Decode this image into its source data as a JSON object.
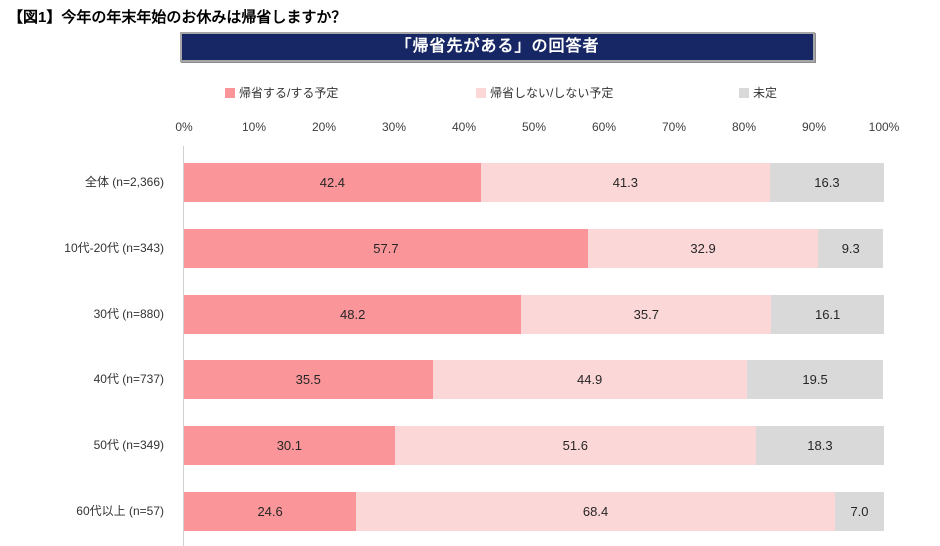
{
  "page_title": "【図1】今年の年末年始のお休みは帰省しますか？",
  "banner": {
    "label": "「帰省先がある」の回答者",
    "bg_color": "#172765",
    "text_color": "#ffffff"
  },
  "chart_data": {
    "type": "bar",
    "orientation": "horizontal",
    "stacked": true,
    "title": "「帰省先がある」の回答者",
    "categories": [
      "全体 (n=2,366)",
      "10代-20代 (n=343)",
      "30代 (n=880)",
      "40代 (n=737)",
      "50代 (n=349)",
      "60代以上 (n=57)"
    ],
    "series": [
      {
        "name": "帰省する/する予定",
        "color": "#fa9699",
        "values": [
          42.4,
          57.7,
          48.2,
          35.5,
          30.1,
          24.6
        ]
      },
      {
        "name": "帰省しない/しない予定",
        "color": "#fcd7d8",
        "values": [
          41.3,
          32.9,
          35.7,
          44.9,
          51.6,
          68.4
        ]
      },
      {
        "name": "未定",
        "color": "#d9d9d9",
        "values": [
          16.3,
          9.3,
          16.1,
          19.5,
          18.3,
          7.0
        ]
      }
    ],
    "x_axis": {
      "ticks": [
        "0%",
        "10%",
        "20%",
        "30%",
        "40%",
        "50%",
        "60%",
        "70%",
        "80%",
        "90%",
        "100%"
      ],
      "min": 0,
      "max": 100
    },
    "value_labels": "inside_center_one_decimal",
    "legend_position": "top",
    "grid": false
  }
}
